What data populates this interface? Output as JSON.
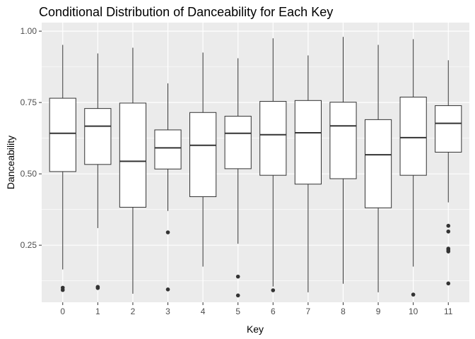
{
  "chart_data": {
    "type": "boxplot",
    "title": "Conditional Distribution of Danceability for Each Key",
    "xlabel": "Key",
    "ylabel": "Danceability",
    "ylim": [
      0.05,
      1.03
    ],
    "yticks": [
      0.25,
      0.5,
      0.75,
      1.0
    ],
    "ytick_labels": [
      "0.25",
      "0.50",
      "0.75",
      "1.00"
    ],
    "grid": true,
    "legend": "none",
    "categories": [
      "0",
      "1",
      "2",
      "3",
      "4",
      "5",
      "6",
      "7",
      "8",
      "9",
      "10",
      "11"
    ],
    "boxes": [
      {
        "key": "0",
        "whisker_low": 0.165,
        "q1": 0.508,
        "median": 0.642,
        "q3": 0.765,
        "whisker_high": 0.952,
        "outliers": [
          0.101,
          0.093
        ]
      },
      {
        "key": "1",
        "whisker_low": 0.31,
        "q1": 0.533,
        "median": 0.667,
        "q3": 0.729,
        "whisker_high": 0.922,
        "outliers": [
          0.104,
          0.1
        ]
      },
      {
        "key": "2",
        "whisker_low": 0.08,
        "q1": 0.383,
        "median": 0.544,
        "q3": 0.748,
        "whisker_high": 0.942,
        "outliers": []
      },
      {
        "key": "3",
        "whisker_low": 0.37,
        "q1": 0.517,
        "median": 0.591,
        "q3": 0.654,
        "whisker_high": 0.817,
        "outliers": [
          0.295,
          0.095
        ]
      },
      {
        "key": "4",
        "whisker_low": 0.175,
        "q1": 0.42,
        "median": 0.6,
        "q3": 0.715,
        "whisker_high": 0.925,
        "outliers": []
      },
      {
        "key": "5",
        "whisker_low": 0.255,
        "q1": 0.518,
        "median": 0.642,
        "q3": 0.702,
        "whisker_high": 0.905,
        "outliers": [
          0.14,
          0.074
        ]
      },
      {
        "key": "6",
        "whisker_low": 0.105,
        "q1": 0.495,
        "median": 0.637,
        "q3": 0.754,
        "whisker_high": 0.975,
        "outliers": [
          0.092
        ]
      },
      {
        "key": "7",
        "whisker_low": 0.085,
        "q1": 0.464,
        "median": 0.644,
        "q3": 0.757,
        "whisker_high": 0.915,
        "outliers": []
      },
      {
        "key": "8",
        "whisker_low": 0.115,
        "q1": 0.483,
        "median": 0.668,
        "q3": 0.751,
        "whisker_high": 0.98,
        "outliers": []
      },
      {
        "key": "9",
        "whisker_low": 0.085,
        "q1": 0.381,
        "median": 0.567,
        "q3": 0.69,
        "whisker_high": 0.952,
        "outliers": []
      },
      {
        "key": "10",
        "whisker_low": 0.175,
        "q1": 0.495,
        "median": 0.627,
        "q3": 0.769,
        "whisker_high": 0.972,
        "outliers": [
          0.077
        ]
      },
      {
        "key": "11",
        "whisker_low": 0.4,
        "q1": 0.576,
        "median": 0.677,
        "q3": 0.739,
        "whisker_high": 0.898,
        "outliers": [
          0.318,
          0.298,
          0.238,
          0.233,
          0.228,
          0.116
        ]
      }
    ]
  }
}
